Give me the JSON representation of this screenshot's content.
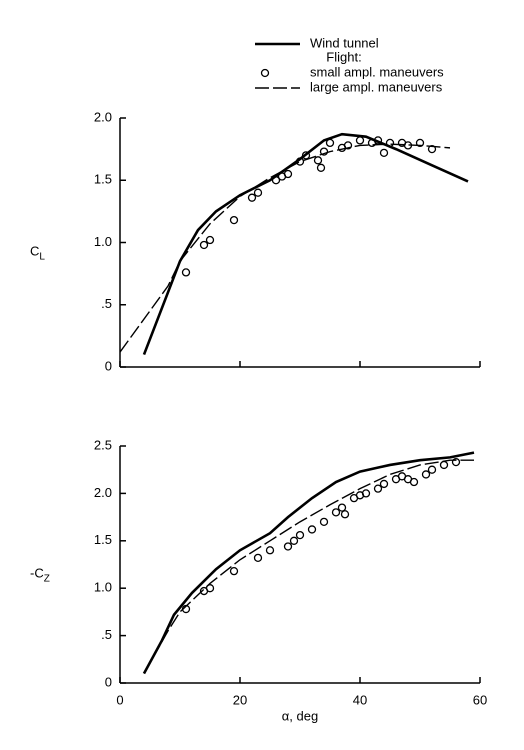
{
  "chart_data": [
    {
      "type": "line",
      "legend": true,
      "legend_heading": "Flight:",
      "ylabel": {
        "text": "C",
        "subscript": "L"
      },
      "xlim": [
        0,
        60
      ],
      "xticks": [
        0,
        20,
        40,
        60
      ],
      "xtick_labels": false,
      "ylim": [
        0,
        2
      ],
      "yticks": [
        {
          "value": 2,
          "label": "2.0"
        },
        1.5,
        {
          "value": 1,
          "label": "1.0"
        },
        {
          "value": 0.5,
          "label": ".5"
        },
        0
      ],
      "series": [
        {
          "name": "Wind tunnel",
          "color": "#000000",
          "style": "solid",
          "x": [
            4,
            8,
            10,
            13,
            16,
            20,
            25,
            30,
            34,
            37,
            41,
            46,
            52,
            58
          ],
          "values": [
            0.1,
            0.6,
            0.85,
            1.1,
            1.25,
            1.38,
            1.5,
            1.67,
            1.82,
            1.87,
            1.85,
            1.75,
            1.62,
            1.49
          ]
        },
        {
          "name": "small ampl. maneuvers",
          "color": "#000000",
          "style": "markers",
          "x": [
            11,
            14,
            15,
            19,
            22,
            23,
            26,
            27,
            28,
            30,
            31,
            33,
            33.5,
            34,
            35,
            37,
            38,
            40,
            42,
            43,
            44,
            45,
            47,
            48,
            50,
            52
          ],
          "values": [
            0.76,
            0.98,
            1.02,
            1.18,
            1.36,
            1.4,
            1.5,
            1.53,
            1.55,
            1.65,
            1.7,
            1.66,
            1.6,
            1.73,
            1.8,
            1.76,
            1.78,
            1.82,
            1.8,
            1.82,
            1.72,
            1.8,
            1.8,
            1.78,
            1.8,
            1.75
          ]
        },
        {
          "name": "large ampl. maneuvers",
          "color": "#000000",
          "style": "dashed",
          "x": [
            0,
            8,
            10,
            15,
            20,
            25,
            30,
            35,
            40,
            45,
            50,
            55
          ],
          "values": [
            0.12,
            0.65,
            0.85,
            1.15,
            1.37,
            1.52,
            1.65,
            1.73,
            1.78,
            1.79,
            1.78,
            1.76
          ]
        }
      ]
    },
    {
      "type": "line",
      "legend": false,
      "ylabel": {
        "text": "-C",
        "subscript": "Z"
      },
      "xlabel": "α, deg",
      "xlim": [
        0,
        60
      ],
      "xticks": [
        0,
        20,
        40,
        60
      ],
      "xtick_labels": true,
      "ylim": [
        0,
        2.5
      ],
      "yticks": [
        2.5,
        {
          "value": 2,
          "label": "2.0"
        },
        1.5,
        {
          "value": 1,
          "label": "1.0"
        },
        {
          "value": 0.5,
          "label": ".5"
        },
        0
      ],
      "series": [
        {
          "name": "Wind tunnel",
          "color": "#000000",
          "style": "solid",
          "x": [
            4,
            7,
            9,
            12,
            16,
            20,
            25,
            28,
            32,
            36,
            40,
            45,
            50,
            55,
            59
          ],
          "values": [
            0.1,
            0.45,
            0.72,
            0.95,
            1.2,
            1.4,
            1.58,
            1.75,
            1.95,
            2.12,
            2.23,
            2.3,
            2.35,
            2.38,
            2.43
          ]
        },
        {
          "name": "small ampl. maneuvers",
          "color": "#000000",
          "style": "markers",
          "x": [
            11,
            14,
            15,
            19,
            23,
            25,
            28,
            29,
            30,
            32,
            34,
            36,
            37,
            37.5,
            39,
            40,
            41,
            43,
            44,
            46,
            47,
            48,
            49,
            51,
            52,
            54,
            56
          ],
          "values": [
            0.78,
            0.97,
            1.0,
            1.18,
            1.32,
            1.4,
            1.44,
            1.5,
            1.56,
            1.62,
            1.7,
            1.8,
            1.85,
            1.78,
            1.95,
            1.98,
            2.0,
            2.05,
            2.1,
            2.15,
            2.18,
            2.15,
            2.12,
            2.2,
            2.25,
            2.3,
            2.33
          ]
        },
        {
          "name": "large ampl. maneuvers",
          "color": "#000000",
          "style": "dashed",
          "x": [
            4,
            8,
            10,
            15,
            20,
            25,
            30,
            35,
            40,
            45,
            50,
            55,
            59
          ],
          "values": [
            0.1,
            0.55,
            0.75,
            1.05,
            1.3,
            1.5,
            1.7,
            1.88,
            2.05,
            2.2,
            2.3,
            2.35,
            2.35
          ]
        }
      ]
    }
  ]
}
